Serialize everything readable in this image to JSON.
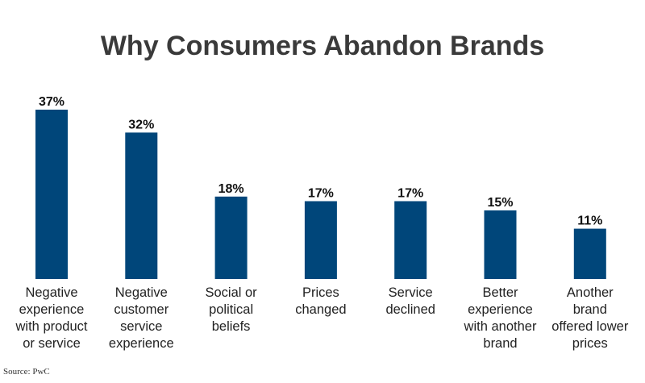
{
  "chart_data": {
    "type": "bar",
    "title": "Why Consumers Abandon Brands",
    "categories": [
      "Negative experience with product or service",
      "Negative customer service experience",
      "Social or political beliefs",
      "Prices changed",
      "Service declined",
      "Better experience with another brand",
      "Another brand offered lower prices"
    ],
    "category_lines": [
      [
        "Negative",
        "experience",
        "with product",
        "or service"
      ],
      [
        "Negative",
        "customer",
        "service",
        "experience"
      ],
      [
        "Social or",
        "political",
        "beliefs"
      ],
      [
        "Prices",
        "changed"
      ],
      [
        "Service",
        "declined"
      ],
      [
        "Better",
        "experience",
        "with another",
        "brand"
      ],
      [
        "Another",
        "brand",
        "offered lower",
        "prices"
      ]
    ],
    "values": [
      37,
      32,
      18,
      17,
      17,
      15,
      11
    ],
    "value_labels": [
      "37%",
      "32%",
      "18%",
      "17%",
      "17%",
      "15%",
      "11%"
    ],
    "xlabel": "",
    "ylabel": "",
    "ylim": [
      0,
      37
    ],
    "grid": false,
    "legend": "none",
    "bar_color": "#00467a",
    "source": "Source: PwC"
  }
}
